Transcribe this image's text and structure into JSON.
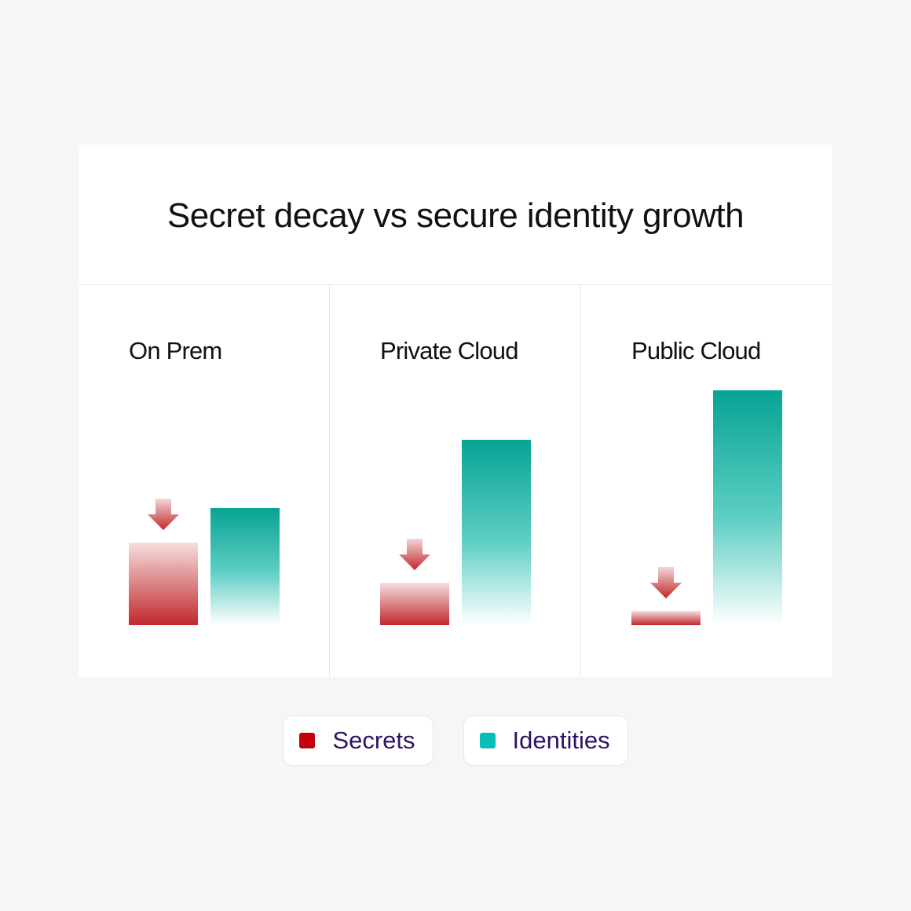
{
  "chart_data": {
    "type": "bar",
    "title": "Secret decay vs secure identity growth",
    "categories": [
      "On Prem",
      "Private Cloud",
      "Public Cloud"
    ],
    "series": [
      {
        "name": "Secrets",
        "color": "#c4000c",
        "values": [
          35,
          18,
          6
        ],
        "marker": "down-arrow-icon"
      },
      {
        "name": "Identities",
        "color": "#07bfb6",
        "values": [
          50,
          79,
          100
        ]
      }
    ],
    "ylim": [
      0,
      100
    ],
    "grid": false,
    "legend": "bottom"
  }
}
